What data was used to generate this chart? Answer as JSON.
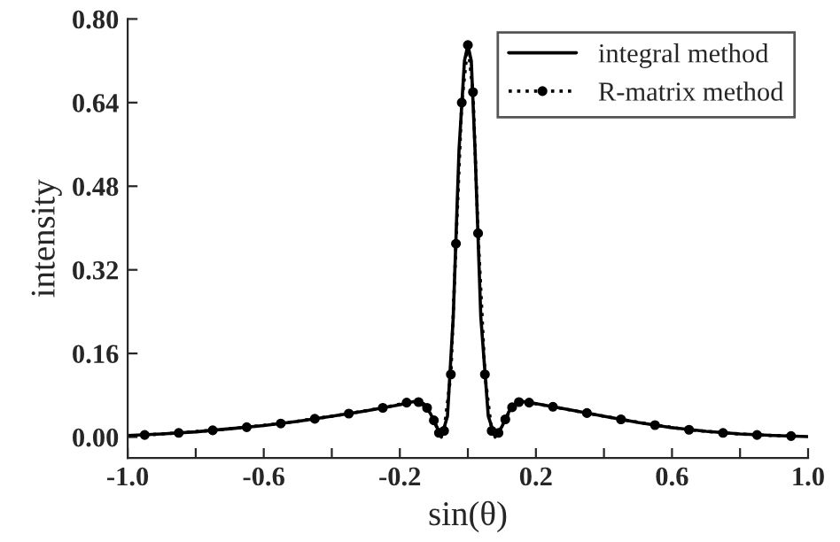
{
  "chart_data": {
    "type": "line",
    "xlabel": "sin(θ)",
    "ylabel": "intensity",
    "xlim": [
      -1.0,
      1.0
    ],
    "ylim": [
      -0.04,
      0.8
    ],
    "xticks": [
      {
        "value": -1.0,
        "label": "-1.0"
      },
      {
        "value": -0.8,
        "label": null
      },
      {
        "value": -0.6,
        "label": "-0.6"
      },
      {
        "value": -0.4,
        "label": null
      },
      {
        "value": -0.2,
        "label": "-0.2"
      },
      {
        "value": 0,
        "label": null
      },
      {
        "value": 0.2,
        "label": "0.2"
      },
      {
        "value": 0.4,
        "label": null
      },
      {
        "value": 0.6,
        "label": "0.6"
      },
      {
        "value": 0.8,
        "label": null
      },
      {
        "value": 1.0,
        "label": "1.0"
      }
    ],
    "yticks": [
      {
        "value": 0,
        "label": "0.00"
      },
      {
        "value": 0.16,
        "label": "0.16"
      },
      {
        "value": 0.32,
        "label": "0.32"
      },
      {
        "value": 0.48,
        "label": "0.48"
      },
      {
        "value": 0.64,
        "label": "0.64"
      },
      {
        "value": 0.8,
        "label": "0.80"
      }
    ],
    "x": [
      -1.0,
      -0.9,
      -0.8,
      -0.7,
      -0.6,
      -0.5,
      -0.4,
      -0.3,
      -0.2,
      -0.16,
      -0.13,
      -0.11,
      -0.09,
      -0.078,
      -0.06,
      -0.043,
      -0.026,
      -0.01,
      0,
      0.01,
      0.021,
      0.038,
      0.06,
      0.08,
      0.1,
      0.12,
      0.14,
      0.16,
      0.2,
      0.3,
      0.4,
      0.5,
      0.6,
      0.7,
      0.8,
      0.9,
      1.0
    ],
    "series": [
      {
        "name": "integral method",
        "color": "#000000",
        "line_style": "solid",
        "marker": "none",
        "values": [
          0.003,
          0.006,
          0.01,
          0.016,
          0.022,
          0.03,
          0.04,
          0.05,
          0.062,
          0.068,
          0.064,
          0.045,
          0.018,
          0.0,
          0.04,
          0.23,
          0.55,
          0.72,
          0.75,
          0.72,
          0.55,
          0.23,
          0.04,
          0.0,
          0.02,
          0.048,
          0.064,
          0.068,
          0.064,
          0.052,
          0.04,
          0.028,
          0.018,
          0.011,
          0.006,
          0.003,
          0.001
        ]
      },
      {
        "name": "R-matrix method",
        "color": "#000000",
        "line_style": "dotted",
        "marker": "circle",
        "x": [
          -0.95,
          -0.85,
          -0.75,
          -0.65,
          -0.55,
          -0.45,
          -0.35,
          -0.25,
          -0.18,
          -0.145,
          -0.12,
          -0.1,
          -0.085,
          -0.07,
          -0.05,
          -0.035,
          -0.018,
          0,
          0.015,
          0.03,
          0.05,
          0.07,
          0.09,
          0.11,
          0.13,
          0.15,
          0.18,
          0.25,
          0.35,
          0.45,
          0.55,
          0.65,
          0.75,
          0.85,
          0.95
        ],
        "values": [
          0.004,
          0.008,
          0.013,
          0.019,
          0.026,
          0.035,
          0.045,
          0.056,
          0.066,
          0.067,
          0.056,
          0.032,
          0.008,
          0.012,
          0.12,
          0.37,
          0.64,
          0.75,
          0.66,
          0.39,
          0.12,
          0.012,
          0.008,
          0.034,
          0.057,
          0.067,
          0.066,
          0.058,
          0.046,
          0.034,
          0.023,
          0.014,
          0.008,
          0.004,
          0.002
        ]
      }
    ],
    "legend": "top right",
    "grid": false
  }
}
